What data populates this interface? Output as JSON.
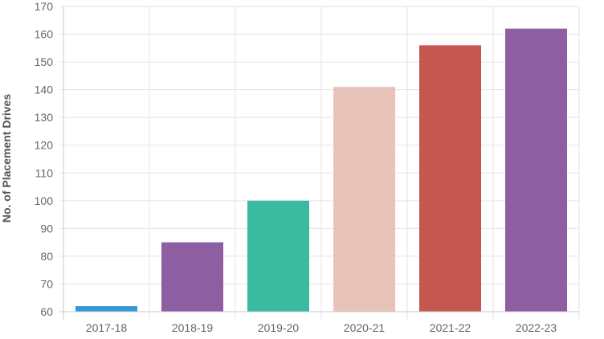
{
  "chart_data": {
    "type": "bar",
    "categories": [
      "2017-18",
      "2018-19",
      "2019-20",
      "2020-21",
      "2021-22",
      "2022-23"
    ],
    "values": [
      62,
      85,
      100,
      141,
      156,
      162
    ],
    "bar_colors": [
      "#3498db",
      "#8e5ea2",
      "#3cba9f",
      "#e8c3b9",
      "#c45850",
      "#8e5ea2"
    ],
    "title": "",
    "xlabel": "",
    "ylabel": "No. of Placement Drives",
    "ylim": [
      60,
      170
    ],
    "yticks": [
      60,
      70,
      80,
      90,
      100,
      110,
      120,
      130,
      140,
      150,
      160,
      170
    ],
    "grid": true,
    "legend": "none"
  }
}
